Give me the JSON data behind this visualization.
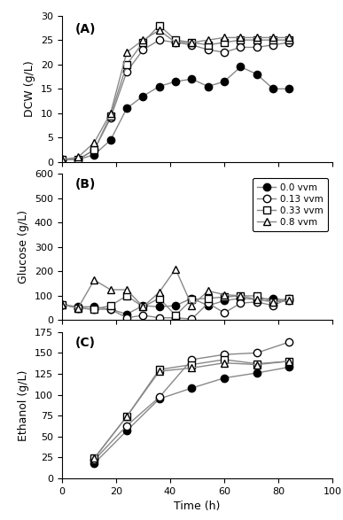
{
  "title_A": "(A)",
  "title_B": "(B)",
  "title_C": "(C)",
  "xlabel": "Time (h)",
  "ylabel_A": "DCW (g/L)",
  "ylabel_B": "Glucose (g/L)",
  "ylabel_C": "Ethanol (g/L)",
  "xlim": [
    0,
    100
  ],
  "ylim_A": [
    0,
    30
  ],
  "ylim_B": [
    0,
    600
  ],
  "ylim_C": [
    0,
    175
  ],
  "xticks": [
    0,
    20,
    40,
    60,
    80,
    100
  ],
  "yticks_A": [
    0,
    5,
    10,
    15,
    20,
    25,
    30
  ],
  "yticks_B": [
    0,
    100,
    200,
    300,
    400,
    500,
    600
  ],
  "yticks_C": [
    0,
    25,
    50,
    75,
    100,
    125,
    150,
    175
  ],
  "legend_labels": [
    "0.0 vvm",
    "0.13 vvm",
    "0.33 vvm",
    "0.8 vvm"
  ],
  "DCW": {
    "0.0": {
      "t": [
        0,
        6,
        12,
        18,
        24,
        30,
        36,
        42,
        48,
        54,
        60,
        66,
        72,
        78,
        84
      ],
      "y": [
        0.5,
        0.5,
        1.5,
        4.5,
        11.0,
        13.5,
        15.5,
        16.5,
        17.0,
        15.5,
        16.5,
        19.5,
        18.0,
        15.0,
        15.0
      ]
    },
    "0.13": {
      "t": [
        0,
        6,
        12,
        18,
        24,
        30,
        36,
        42,
        48,
        54,
        60,
        66,
        72,
        78,
        84
      ],
      "y": [
        0.5,
        0.5,
        2.5,
        9.0,
        18.5,
        23.0,
        25.0,
        24.5,
        24.0,
        23.0,
        22.5,
        23.5,
        23.5,
        24.0,
        24.5
      ]
    },
    "0.33": {
      "t": [
        0,
        6,
        12,
        18,
        24,
        30,
        36,
        42,
        48,
        54,
        60,
        66,
        72,
        78,
        84
      ],
      "y": [
        0.5,
        0.5,
        2.5,
        9.5,
        20.0,
        24.5,
        28.0,
        25.0,
        24.5,
        24.0,
        24.5,
        25.0,
        25.0,
        25.0,
        25.0
      ]
    },
    "0.8": {
      "t": [
        0,
        6,
        12,
        18,
        24,
        30,
        36,
        42,
        48,
        54,
        60,
        66,
        72,
        78,
        84
      ],
      "y": [
        0.5,
        1.0,
        4.0,
        10.0,
        22.5,
        25.0,
        27.0,
        24.5,
        24.5,
        25.0,
        25.5,
        25.5,
        25.5,
        25.5,
        25.5
      ]
    }
  },
  "Glucose": {
    "0.0": {
      "t": [
        0,
        6,
        12,
        18,
        24,
        30,
        36,
        42,
        48,
        54,
        60,
        66,
        72,
        78,
        84
      ],
      "y": [
        65,
        55,
        55,
        45,
        25,
        60,
        55,
        60,
        90,
        60,
        80,
        90,
        85,
        90,
        80
      ]
    },
    "0.13": {
      "t": [
        0,
        6,
        12,
        18,
        24,
        30,
        36,
        42,
        48,
        54,
        60,
        66,
        72,
        78,
        84
      ],
      "y": [
        65,
        50,
        45,
        45,
        10,
        20,
        10,
        10,
        5,
        70,
        30,
        70,
        75,
        60,
        90
      ]
    },
    "0.33": {
      "t": [
        0,
        6,
        12,
        18,
        24,
        30,
        36,
        42,
        48,
        54,
        60,
        66,
        72,
        78,
        84
      ],
      "y": [
        65,
        50,
        45,
        60,
        100,
        55,
        90,
        20,
        85,
        90,
        95,
        100,
        100,
        75,
        90
      ]
    },
    "0.8": {
      "t": [
        0,
        6,
        12,
        18,
        24,
        30,
        36,
        42,
        48,
        54,
        60,
        66,
        72,
        78,
        84
      ],
      "y": [
        65,
        50,
        165,
        125,
        125,
        55,
        115,
        210,
        60,
        120,
        105,
        100,
        85,
        75,
        80
      ]
    }
  },
  "Ethanol": {
    "0.0": {
      "t": [
        12,
        24,
        36,
        48,
        60,
        72,
        84
      ],
      "y": [
        18,
        57,
        95,
        108,
        120,
        126,
        133
      ]
    },
    "0.13": {
      "t": [
        12,
        24,
        36,
        48,
        60,
        72,
        84
      ],
      "y": [
        22,
        63,
        97,
        142,
        148,
        150,
        163
      ]
    },
    "0.33": {
      "t": [
        12,
        24,
        36,
        48,
        60,
        72,
        84
      ],
      "y": [
        24,
        74,
        130,
        136,
        142,
        137,
        140
      ]
    },
    "0.8": {
      "t": [
        12,
        24,
        36,
        48,
        60,
        72,
        84
      ],
      "y": [
        24,
        74,
        128,
        132,
        138,
        136,
        140
      ]
    }
  },
  "markers_filled": {
    "0.0": true,
    "0.13": false,
    "0.33": false,
    "0.8": false
  },
  "marker_styles": {
    "0.0": "o",
    "0.13": "o",
    "0.33": "s",
    "0.8": "^"
  },
  "line_color": "#888888",
  "markersize": 6,
  "linewidth": 1.0
}
